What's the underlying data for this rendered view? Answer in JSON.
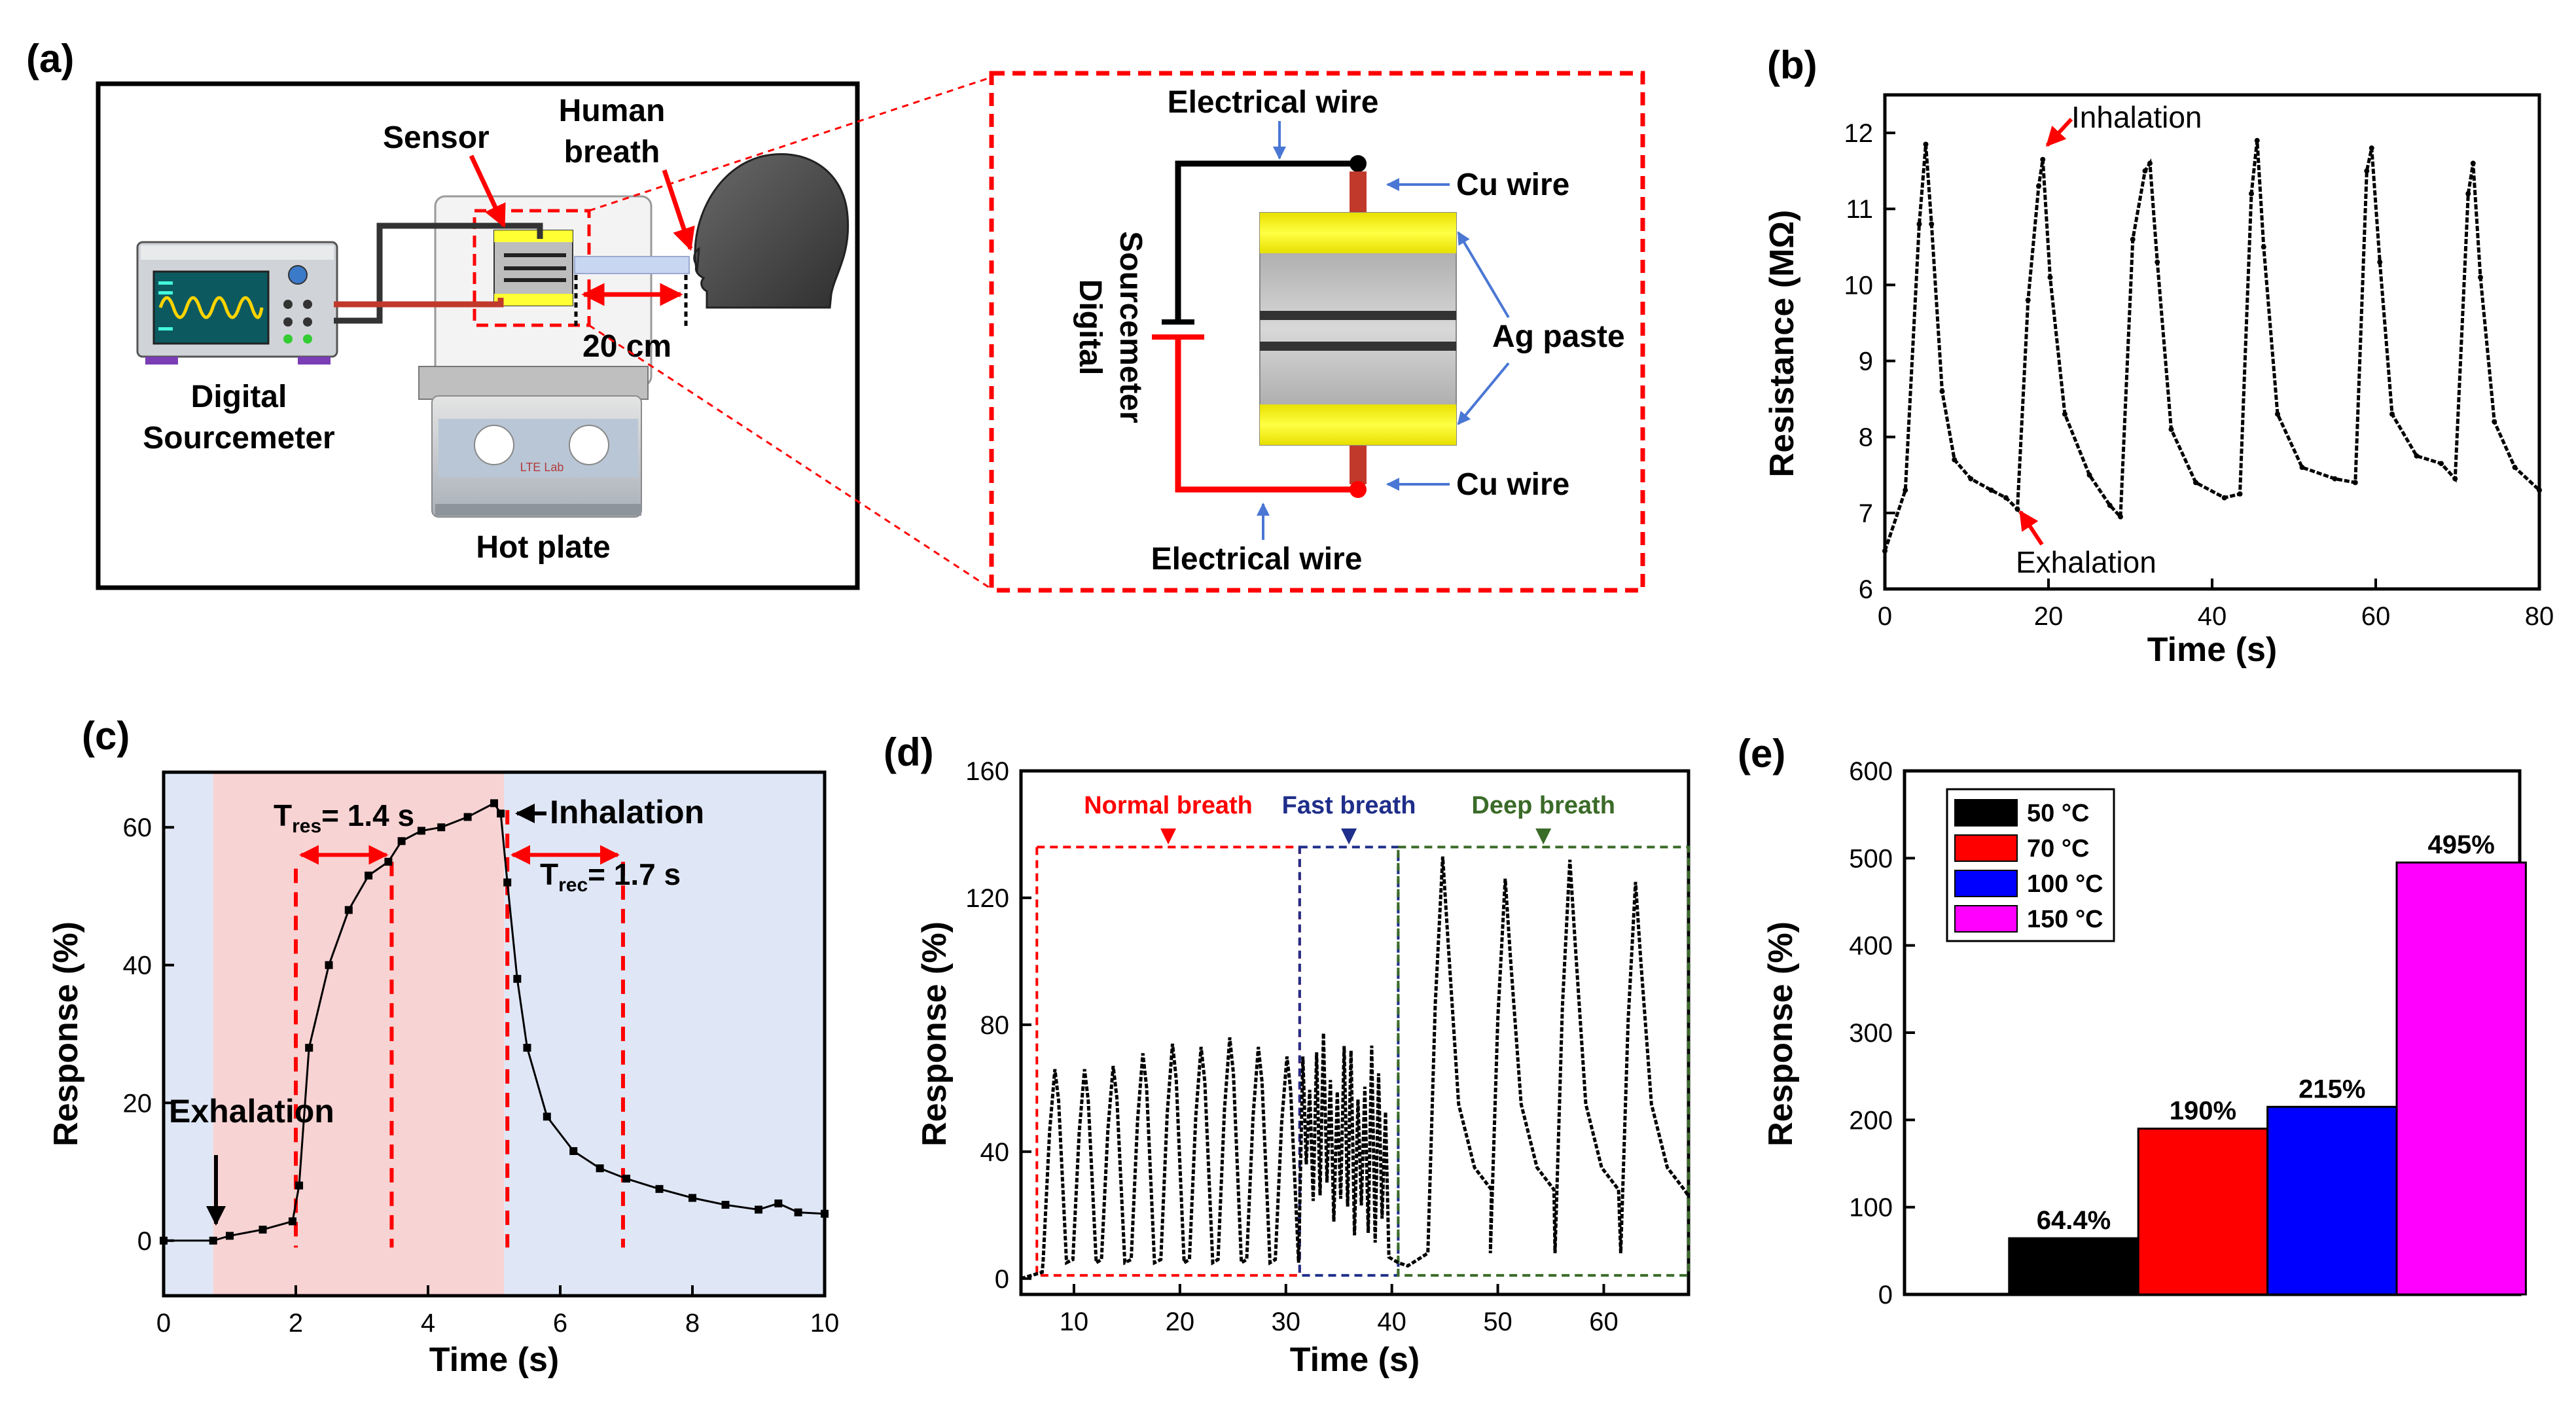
{
  "panel_labels": {
    "a": "(a)",
    "b": "(b)",
    "c": "(c)",
    "d": "(d)",
    "e": "(e)"
  },
  "schematic": {
    "sensor": "Sensor",
    "human_breath_1": "Human",
    "human_breath_2": "breath",
    "distance": "20 cm",
    "sourcemeter_1": "Digital",
    "sourcemeter_2": "Sourcemeter",
    "hot_plate": "Hot plate",
    "hotplate_brand": "LTE Lab",
    "electrical_wire_top": "Electrical wire",
    "electrical_wire_bottom": "Electrical wire",
    "cu_wire_top": "Cu wire",
    "cu_wire_bottom": "Cu wire",
    "ag_paste": "Ag paste",
    "circuit_source_1": "Digital",
    "circuit_source_2": "Sourcemeter"
  },
  "colors": {
    "red": "#ff0000",
    "blue": "#0000ff",
    "magenta": "#ff00ff",
    "navy": "#1f2e8a",
    "green": "#3a6b28",
    "yellow": "#ffff33"
  },
  "chart_data": [
    {
      "id": "b",
      "type": "line",
      "xlabel": "Time (s)",
      "ylabel": "Resistance (MΩ)",
      "xlim": [
        0,
        80
      ],
      "ylim": [
        6,
        12.5
      ],
      "xticks": [
        0,
        20,
        40,
        60,
        80
      ],
      "yticks": [
        6,
        7,
        8,
        9,
        10,
        11,
        12
      ],
      "series": [
        {
          "name": "resistance",
          "x": [
            0,
            2.5,
            4.2,
            5,
            5.7,
            7,
            8.5,
            10.5,
            13,
            14.8,
            16.2,
            17.5,
            18.8,
            19.3,
            20.2,
            22,
            25,
            27.5,
            28.8,
            30.3,
            31.8,
            32.4,
            33.3,
            35,
            38,
            41.5,
            43.4,
            44.8,
            45.5,
            46.3,
            48,
            51,
            55,
            57.5,
            58.9,
            59.5,
            60.5,
            62,
            65,
            68,
            69.7,
            71.3,
            71.9,
            72.8,
            74.5,
            77,
            80
          ],
          "y": [
            6.5,
            7.3,
            10.8,
            11.85,
            10.8,
            8.6,
            7.7,
            7.45,
            7.3,
            7.2,
            7.05,
            9.8,
            11.3,
            11.65,
            10.1,
            8.3,
            7.5,
            7.1,
            6.95,
            10.6,
            11.5,
            11.6,
            10.3,
            8.1,
            7.4,
            7.2,
            7.25,
            11.2,
            11.9,
            10.5,
            8.3,
            7.6,
            7.45,
            7.4,
            11.5,
            11.8,
            10.3,
            8.3,
            7.75,
            7.65,
            7.45,
            11.2,
            11.6,
            10.1,
            8.2,
            7.6,
            7.3
          ]
        }
      ],
      "annotations": [
        {
          "text": "Inhalation",
          "x": 19.3,
          "y": 11.6
        },
        {
          "text": "Exhalation",
          "x": 16.2,
          "y": 7.05
        }
      ]
    },
    {
      "id": "c",
      "type": "line",
      "xlabel": "Time (s)",
      "ylabel": "Response (%)",
      "xlim": [
        0,
        10
      ],
      "ylim": [
        -8,
        68
      ],
      "xticks": [
        0,
        2,
        4,
        6,
        8,
        10
      ],
      "yticks": [
        0,
        20,
        40,
        60
      ],
      "series": [
        {
          "name": "response",
          "x": [
            0,
            0.75,
            1.0,
            1.5,
            1.95,
            2.05,
            2.2,
            2.5,
            2.8,
            3.1,
            3.4,
            3.6,
            3.9,
            4.2,
            4.6,
            5.0,
            5.1,
            5.2,
            5.35,
            5.5,
            5.8,
            6.2,
            6.6,
            7.0,
            7.5,
            8.0,
            8.5,
            9.0,
            9.3,
            9.6,
            10.0
          ],
          "y": [
            0,
            0,
            0.7,
            1.6,
            2.8,
            8,
            28,
            40,
            48,
            53,
            55,
            58,
            59.5,
            60,
            61.5,
            63.5,
            62,
            52,
            38,
            28,
            18,
            13,
            10.5,
            9,
            7.5,
            6.2,
            5.2,
            4.5,
            5.4,
            4.1,
            3.9
          ]
        }
      ],
      "regions": [
        {
          "x0": 0.75,
          "x1": 5.15,
          "label": "response"
        }
      ],
      "markers_x": [
        2.0,
        3.45,
        5.2,
        6.95
      ],
      "annotations": {
        "tres": "T",
        "tres_sub": "res",
        "tres_val": "= 1.4 s",
        "trec": "T",
        "trec_sub": "rec",
        "trec_val": "= 1.7 s",
        "inhalation": "Inhalation",
        "exhalation": "Exhalation"
      }
    },
    {
      "id": "d",
      "type": "line",
      "xlabel": "Time (s)",
      "ylabel": "Response (%)",
      "xlim": [
        5,
        68
      ],
      "ylim": [
        -5,
        160
      ],
      "xticks": [
        10,
        20,
        30,
        40,
        50,
        60
      ],
      "yticks": [
        0,
        40,
        80,
        120,
        160
      ],
      "regions": [
        {
          "label": "Normal breath",
          "x0": 6.5,
          "x1": 31.3
        },
        {
          "label": "Fast breath",
          "x0": 31.3,
          "x1": 40.6
        },
        {
          "label": "Deep breath",
          "x0": 40.6,
          "x1": 68
        }
      ],
      "region_top": 136,
      "normal_peaks": [
        {
          "t": 8.2,
          "h": 66
        },
        {
          "t": 11.0,
          "h": 66
        },
        {
          "t": 13.7,
          "h": 67
        },
        {
          "t": 16.5,
          "h": 71
        },
        {
          "t": 19.3,
          "h": 74
        },
        {
          "t": 22.0,
          "h": 73
        },
        {
          "t": 24.7,
          "h": 76
        },
        {
          "t": 27.4,
          "h": 73
        },
        {
          "t": 30.1,
          "h": 70
        }
      ],
      "fast_peaks": {
        "start": 31.6,
        "end": 40.0,
        "period": 0.65,
        "max": 70,
        "min_start": 30,
        "min_end": 10
      },
      "deep_peaks": [
        {
          "t": 44.8,
          "h": 133
        },
        {
          "t": 50.7,
          "h": 126
        },
        {
          "t": 56.8,
          "h": 132
        },
        {
          "t": 63.0,
          "h": 125
        }
      ]
    },
    {
      "id": "e",
      "type": "bar",
      "xlabel": "",
      "ylabel": "Response (%)",
      "ylim": [
        0,
        600
      ],
      "yticks": [
        0,
        100,
        200,
        300,
        400,
        500,
        600
      ],
      "categories": [
        "50 °C",
        "70 °C",
        "100 °C",
        "150 °C"
      ],
      "values": [
        64.4,
        190,
        215,
        495
      ],
      "value_labels": [
        "64.4%",
        "190%",
        "215%",
        "495%"
      ],
      "bar_colors": [
        "#000000",
        "#ff0000",
        "#0000ff",
        "#ff00ff"
      ],
      "legend": "top-left"
    }
  ]
}
